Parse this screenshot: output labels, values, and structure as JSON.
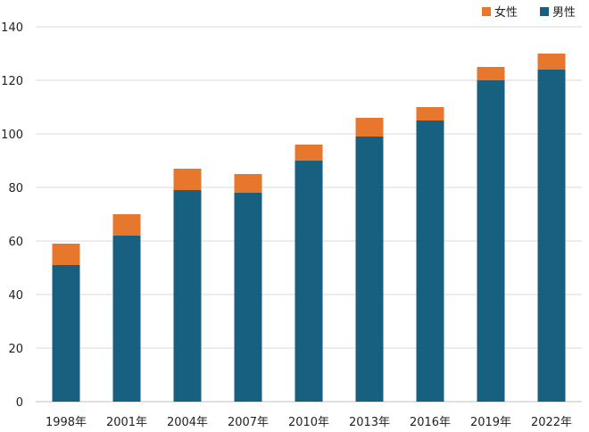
{
  "chart_data": {
    "type": "bar",
    "stacked": true,
    "categories": [
      "1998年",
      "2001年",
      "2004年",
      "2007年",
      "2010年",
      "2013年",
      "2016年",
      "2019年",
      "2022年"
    ],
    "series": [
      {
        "name": "男性",
        "values": [
          51,
          62,
          79,
          78,
          90,
          99,
          105,
          120,
          124
        ],
        "color": "#17607f"
      },
      {
        "name": "女性",
        "values": [
          8,
          8,
          8,
          7,
          6,
          7,
          5,
          5,
          6
        ],
        "color": "#e8772e"
      }
    ],
    "ylim": [
      0,
      140
    ],
    "yticks": [
      0,
      20,
      40,
      60,
      80,
      100,
      120,
      140
    ],
    "grid": true,
    "legend_position": "top-right",
    "legend_order": [
      "女性",
      "男性"
    ]
  }
}
